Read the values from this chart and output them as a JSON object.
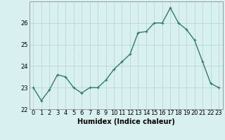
{
  "x": [
    0,
    1,
    2,
    3,
    4,
    5,
    6,
    7,
    8,
    9,
    10,
    11,
    12,
    13,
    14,
    15,
    16,
    17,
    18,
    19,
    20,
    21,
    22,
    23
  ],
  "y": [
    23.0,
    22.4,
    22.9,
    23.6,
    23.5,
    23.0,
    22.75,
    23.0,
    23.0,
    23.35,
    23.85,
    24.2,
    24.55,
    25.55,
    25.6,
    26.0,
    26.0,
    26.7,
    26.0,
    25.7,
    25.2,
    24.2,
    23.2,
    23.0
  ],
  "line_color": "#2d7d6f",
  "marker": "+",
  "marker_size": 3,
  "linewidth": 1.0,
  "bg_color": "#d8f0f0",
  "grid_color": "#b8d8d8",
  "xlabel": "Humidex (Indice chaleur)",
  "xlabel_fontsize": 7,
  "tick_fontsize": 6,
  "ylim": [
    22.0,
    27.0
  ],
  "xlim": [
    -0.5,
    23.5
  ],
  "yticks": [
    22,
    23,
    24,
    25,
    26
  ],
  "xticks": [
    0,
    1,
    2,
    3,
    4,
    5,
    6,
    7,
    8,
    9,
    10,
    11,
    12,
    13,
    14,
    15,
    16,
    17,
    18,
    19,
    20,
    21,
    22,
    23
  ]
}
